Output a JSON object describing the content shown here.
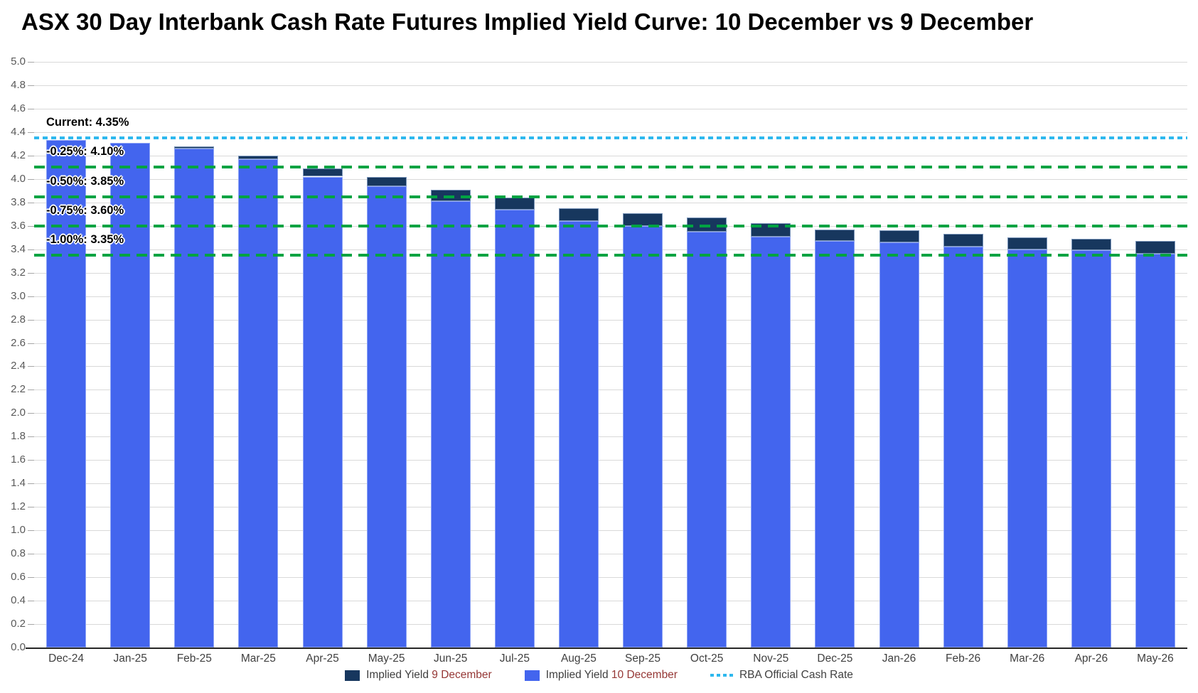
{
  "chart_data": {
    "type": "bar",
    "title": "ASX 30 Day Interbank Cash Rate Futures Implied Yield Curve: 10 December vs 9 December",
    "categories": [
      "Dec-24",
      "Jan-25",
      "Feb-25",
      "Mar-25",
      "Apr-25",
      "May-25",
      "Jun-25",
      "Jul-25",
      "Aug-25",
      "Sep-25",
      "Oct-25",
      "Nov-25",
      "Dec-25",
      "Jan-26",
      "Feb-26",
      "Mar-26",
      "Apr-26",
      "May-26"
    ],
    "series": [
      {
        "name": "Implied Yield 9 December",
        "color": "#17375E",
        "values": [
          4.33,
          4.31,
          4.28,
          4.2,
          4.09,
          4.02,
          3.91,
          3.84,
          3.75,
          3.71,
          3.67,
          3.62,
          3.57,
          3.56,
          3.53,
          3.5,
          3.49,
          3.47
        ]
      },
      {
        "name": "Implied Yield 10 December",
        "color": "#4365EE",
        "values": [
          4.33,
          4.31,
          4.26,
          4.17,
          4.02,
          3.94,
          3.81,
          3.74,
          3.64,
          3.6,
          3.55,
          3.51,
          3.47,
          3.46,
          3.42,
          3.4,
          3.39,
          3.36
        ]
      }
    ],
    "reference_lines": [
      {
        "label": "Current: 4.35%",
        "value": 4.35,
        "color": "#2EB8EE",
        "style": "fine-dash"
      },
      {
        "label": "-0.25%: 4.10%",
        "value": 4.1,
        "color": "#00A342",
        "style": "long-dash"
      },
      {
        "label": "-0.50%: 3.85%",
        "value": 3.85,
        "color": "#00A342",
        "style": "long-dash"
      },
      {
        "label": "-0.75%: 3.60%",
        "value": 3.6,
        "color": "#00A342",
        "style": "long-dash"
      },
      {
        "label": "-1.00%: 3.35%",
        "value": 3.35,
        "color": "#00A342",
        "style": "long-dash"
      }
    ],
    "ylim": [
      0.0,
      5.0
    ],
    "ytick_step": 0.2,
    "y_tick_labels": [
      "5.0",
      "4.8",
      "4.6",
      "4.4",
      "4.2",
      "4.0",
      "3.8",
      "3.6",
      "3.4",
      "3.2",
      "3.0",
      "2.8",
      "2.6",
      "2.4",
      "2.2",
      "2.0",
      "1.8",
      "1.6",
      "1.4",
      "1.2",
      "1.0",
      "0.8",
      "0.6",
      "0.4",
      "0.2",
      "0.0"
    ],
    "grid": true,
    "legend_position": "bottom"
  },
  "legend": {
    "items": [
      {
        "prefix": "Implied Yield ",
        "highlight": "9 December"
      },
      {
        "prefix": "Implied Yield ",
        "highlight": "10 December"
      },
      {
        "prefix": "RBA Official Cash Rate",
        "highlight": ""
      }
    ]
  }
}
